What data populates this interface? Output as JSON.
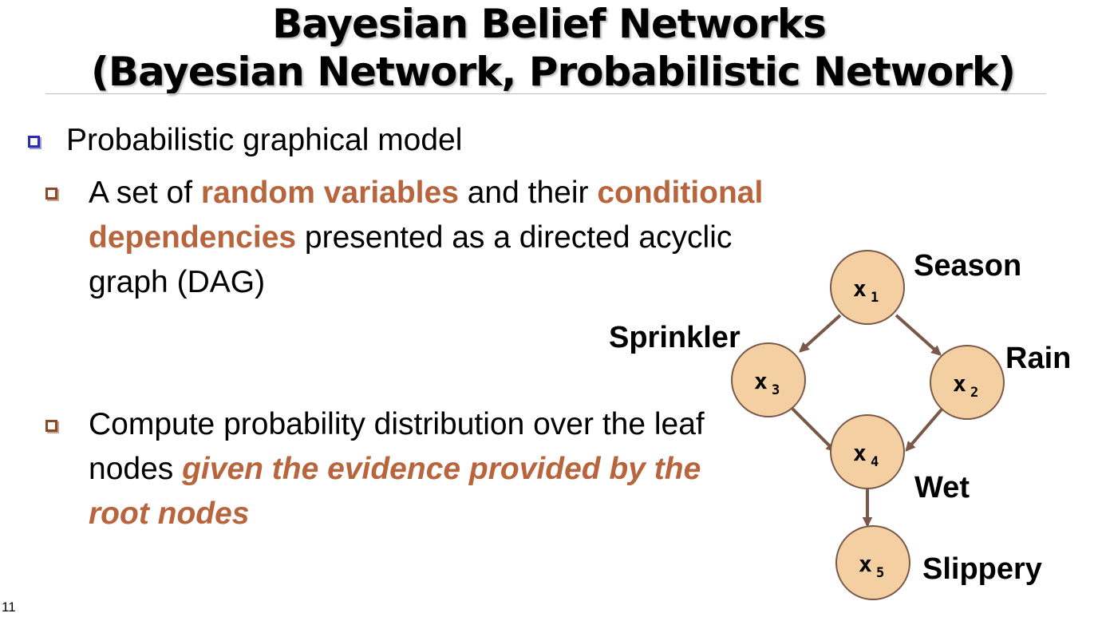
{
  "title": {
    "line1": "Bayesian Belief Networks",
    "line2": "(Bayesian Network, Probabilistic Network)"
  },
  "bullets": [
    {
      "level": 1,
      "parts": [
        {
          "text": "Probabilistic graphical model",
          "style": "normal"
        }
      ]
    },
    {
      "level": 2,
      "parts": [
        {
          "text": "A set of ",
          "style": "normal"
        },
        {
          "text": "random variables",
          "style": "highlight"
        },
        {
          "text": " and their ",
          "style": "normal"
        },
        {
          "text": "conditional dependencies",
          "style": "highlight"
        },
        {
          "text": " presented as a directed acyclic graph (DAG)",
          "style": "normal"
        }
      ]
    },
    {
      "level": 2,
      "parts": [
        {
          "text": "Compute probability distribution over the leaf nodes ",
          "style": "normal"
        },
        {
          "text": "given the evidence provided by the root nodes",
          "style": "highlight-italic"
        }
      ]
    }
  ],
  "diagram": {
    "nodes": [
      {
        "id": "x1",
        "main": "x",
        "sub": "1",
        "label": "Season"
      },
      {
        "id": "x2",
        "main": "x",
        "sub": "2",
        "label": "Rain"
      },
      {
        "id": "x3",
        "main": "x",
        "sub": "3",
        "label": "Sprinkler"
      },
      {
        "id": "x4",
        "main": "x",
        "sub": "4",
        "label": "Wet"
      },
      {
        "id": "x5",
        "main": "x",
        "sub": "5",
        "label": "Slippery"
      }
    ],
    "edges": [
      {
        "from": "x1",
        "to": "x3"
      },
      {
        "from": "x1",
        "to": "x2"
      },
      {
        "from": "x3",
        "to": "x4"
      },
      {
        "from": "x2",
        "to": "x4"
      },
      {
        "from": "x4",
        "to": "x5"
      }
    ]
  },
  "colors": {
    "accent": "#b8643c",
    "node_fill": "#f3cfa1",
    "node_stroke": "#7b5948",
    "edge": "#7a5848",
    "bullet_level1": "#2b2bb8",
    "bullet_level2": "#8a4a26"
  },
  "page_number": "11"
}
